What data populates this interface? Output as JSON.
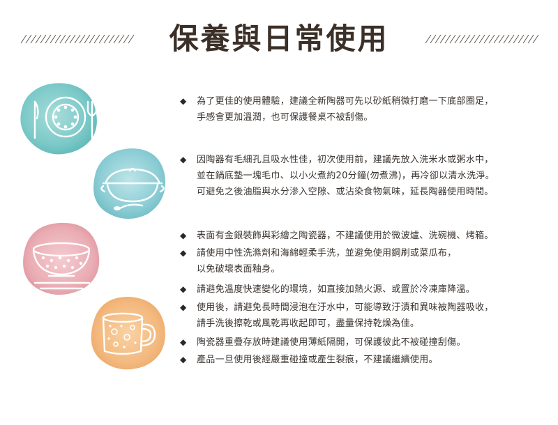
{
  "title": "保養與日常使用",
  "icons": [
    "plate-and-cutlery-icon",
    "cooking-pot-icon",
    "rice-bowl-icon",
    "mug-icon"
  ],
  "colors": {
    "teal": "#6cc3c2",
    "blue": "#7ec7cf",
    "pink": "#e8a5ad",
    "orange": "#f2b272",
    "text": "#3a3430"
  },
  "items": [
    {
      "lines": [
        "為了更佳的使用體驗，建議全新陶器可先以砂紙稍微打磨一下底部圈足，",
        "手感會更加溫潤，也可保護餐桌不被刮傷。"
      ]
    },
    {
      "lines": [
        "因陶器有毛細孔且吸水性佳，初次使用前，建議先放入洗米水或粥水中，",
        "並在鍋底墊一塊毛巾、以小火煮約20分鐘(勿煮沸)，再冷卻以清水洗淨。",
        "可避免之後油脂與水分滲入空隙、或沾染食物氣味，延長陶器使用時間。"
      ]
    },
    {
      "lines": [
        "表面有金銀裝飾與彩繪之陶瓷器，不建議使用於微波爐、洗碗機、烤箱。"
      ]
    },
    {
      "lines": [
        "請使用中性洗滌劑和海綿輕柔手洗，並避免使用鋼刷或菜瓜布，",
        "以免破壞表面釉身。"
      ]
    },
    {
      "lines": [
        "請避免溫度快速變化的環境，如直接加熱火源、或置於冷凍庫降溫。"
      ]
    },
    {
      "lines": [
        "使用後，請避免長時間浸泡在汙水中，可能導致汙漬和異味被陶器吸收，",
        "請手洗後擦乾或風乾再收起即可，盡量保持乾燥為佳。"
      ]
    },
    {
      "lines": [
        "陶瓷器重疊存放時建議使用薄紙隔開，可保護彼此不被碰撞刮傷。"
      ]
    },
    {
      "lines": [
        "產品一旦使用後經嚴重碰撞或產生裂痕，不建議繼續使用。"
      ]
    }
  ],
  "bullet": "◆"
}
